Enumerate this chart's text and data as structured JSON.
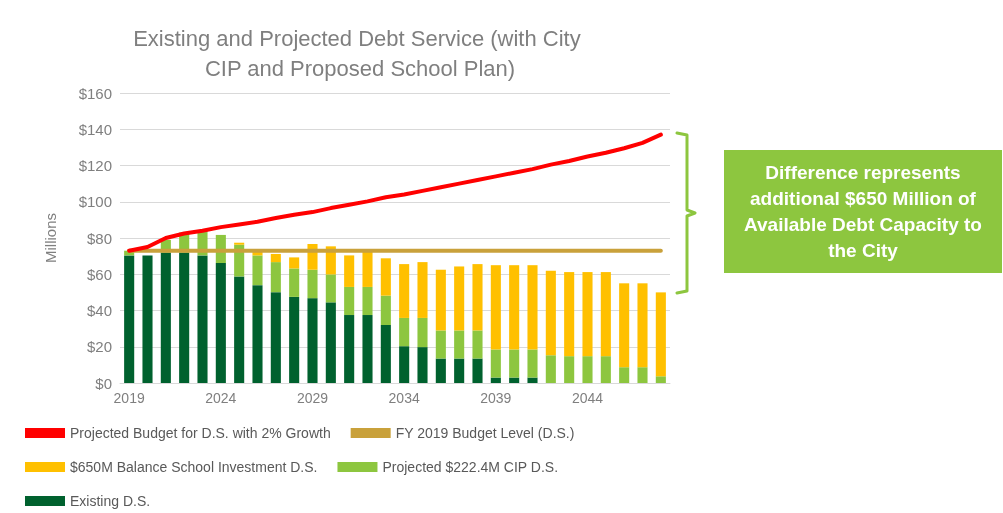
{
  "chart_data": {
    "type": "bar",
    "title": "Existing and Projected Debt Service (with City CIP and Proposed School Plan)",
    "ylabel": "Millions",
    "categories": [
      "2019",
      null,
      null,
      null,
      null,
      "2024",
      null,
      null,
      null,
      null,
      "2029",
      null,
      null,
      null,
      null,
      "2034",
      null,
      null,
      null,
      null,
      "2039",
      null,
      null,
      null,
      null,
      "2044",
      null,
      null,
      null,
      null
    ],
    "stacked": true,
    "series": [
      {
        "name": "Existing D.S.",
        "color": "#00612e",
        "values": [
          70.4,
          70.4,
          72,
          72,
          70.4,
          66.2,
          58.8,
          54,
          50.1,
          47.5,
          46.8,
          44.5,
          37.5,
          37.5,
          32,
          20.3,
          19.8,
          13.5,
          13.5,
          13.5,
          3,
          3,
          3,
          0,
          0,
          0,
          0,
          0,
          0,
          0
        ]
      },
      {
        "name": "Projected $222.4M CIP D.S.",
        "color": "#8dc63f",
        "values": [
          2.6,
          null,
          7,
          11,
          13.6,
          15.5,
          17.5,
          16.4,
          16.6,
          15.7,
          15.7,
          15.4,
          15.5,
          15.5,
          16.2,
          15.6,
          16.1,
          15.5,
          15.5,
          15.5,
          15.5,
          15.5,
          15.5,
          15.3,
          14.8,
          14.8,
          14.8,
          8.7,
          8.7,
          3.7
        ]
      },
      {
        "name": "$650M Balance School Investment D.S.",
        "color": "#ffc000",
        "values": [
          0,
          0,
          0,
          0,
          0,
          0,
          1.1,
          2.1,
          4.5,
          6.1,
          14.2,
          15.5,
          17.4,
          19.3,
          20.6,
          29.7,
          30.8,
          33.5,
          35.3,
          36.6,
          46.5,
          46.5,
          46.5,
          46.6,
          46.4,
          46.4,
          46.4,
          46.3,
          46.3,
          46.3
        ]
      },
      {
        "name": "FY 2019 Budget Level (D.S.)",
        "type": "line",
        "color": "#c9a13b",
        "values": [
          73,
          73,
          73,
          73,
          73,
          73,
          73,
          73,
          73,
          73,
          73,
          73,
          73,
          73,
          73,
          73,
          73,
          73,
          73,
          73,
          73,
          73,
          73,
          73,
          73,
          73,
          73,
          73,
          73,
          73
        ]
      },
      {
        "name": "Projected Budget for D.S. with 2% Growth",
        "type": "line",
        "color": "#ff0000",
        "values": [
          73,
          75,
          80,
          82.5,
          84,
          86,
          87.4,
          89,
          91,
          92.8,
          94.3,
          96.5,
          98.3,
          100.2,
          102.5,
          104,
          106,
          108,
          110,
          112,
          114,
          116,
          118,
          120.5,
          122.5,
          125,
          127,
          129.5,
          132.5,
          137
        ]
      }
    ],
    "ylim": [
      0,
      160
    ],
    "yticks": [
      {
        "value": 0,
        "label": "$0"
      },
      {
        "value": 20,
        "label": "$20"
      },
      {
        "value": 40,
        "label": "$40"
      },
      {
        "value": 60,
        "label": "$60"
      },
      {
        "value": 80,
        "label": "$80"
      },
      {
        "value": 100,
        "label": "$100"
      },
      {
        "value": 120,
        "label": "$120"
      },
      {
        "value": 140,
        "label": "$140"
      },
      {
        "value": 160,
        "label": "$160"
      }
    ],
    "grid": "y",
    "legend": "bottom",
    "marker": "none",
    "line_style": "solid",
    "annotations": [
      "Difference represents additional $650 Million of Available Debt Capacity to the City"
    ]
  }
}
